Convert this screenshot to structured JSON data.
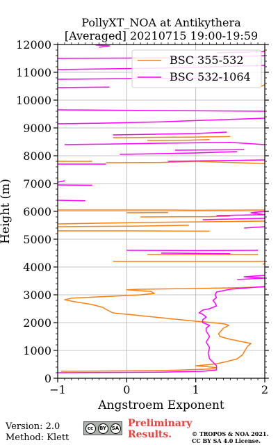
{
  "chart_data": {
    "type": "line",
    "title": "PollyXT_NOA at Antikythera",
    "subtitle": "[Averaged] 20210715 19:00-19:59",
    "xlabel": "Angstroem Exponent",
    "ylabel": "Height (m)",
    "xlim": [
      -1,
      2
    ],
    "ylim": [
      0,
      12000
    ],
    "x_ticks": [
      "−1",
      "0",
      "1",
      "2"
    ],
    "x_tick_values": [
      -1,
      0,
      1,
      2
    ],
    "y_ticks": [
      "0",
      "1000",
      "2000",
      "3000",
      "4000",
      "5000",
      "6000",
      "7000",
      "8000",
      "9000",
      "10000",
      "11000",
      "12000"
    ],
    "y_tick_values": [
      0,
      1000,
      2000,
      3000,
      4000,
      5000,
      6000,
      7000,
      8000,
      9000,
      10000,
      11000,
      12000
    ],
    "grid": true,
    "legend_position": "top-right",
    "series": [
      {
        "name": "BSC 355-532",
        "color": "#ff7f0e",
        "points": [
          [
            -0.95,
            250
          ],
          [
            0.6,
            280
          ],
          [
            1.2,
            330
          ],
          [
            1.3,
            380
          ],
          [
            1.1,
            430
          ],
          [
            1.0,
            450
          ],
          [
            1.15,
            480
          ],
          [
            1.3,
            520
          ],
          [
            1.45,
            600
          ],
          [
            1.6,
            700
          ],
          [
            1.68,
            850
          ],
          [
            1.7,
            950
          ],
          [
            1.75,
            1150
          ],
          [
            1.8,
            1250
          ],
          [
            1.7,
            1300
          ],
          [
            1.5,
            1400
          ],
          [
            1.35,
            1500
          ],
          [
            1.33,
            1600
          ],
          [
            1.4,
            1800
          ],
          [
            1.48,
            1900
          ],
          [
            1.42,
            1950
          ],
          [
            1.25,
            2000
          ],
          [
            1.0,
            2050
          ],
          [
            0.6,
            2150
          ],
          [
            0.2,
            2250
          ],
          [
            -0.2,
            2350
          ],
          [
            -0.28,
            2450
          ],
          [
            -0.35,
            2550
          ],
          [
            -0.5,
            2650
          ],
          [
            -0.75,
            2750
          ],
          [
            -0.9,
            2820
          ],
          [
            -0.8,
            2880
          ],
          [
            -0.2,
            2950
          ],
          [
            0.2,
            3000
          ],
          [
            0.4,
            3050
          ],
          [
            0.35,
            3120
          ],
          [
            0.0,
            3180
          ],
          [
            0.2,
            3200
          ],
          [
            0.8,
            3220
          ],
          [
            1.5,
            3250
          ],
          [
            2.0,
            3280
          ],
          null,
          [
            -0.2,
            4200
          ],
          [
            2.0,
            4200
          ],
          null,
          [
            1.97,
            4100
          ],
          [
            2.0,
            4120
          ],
          null,
          [
            0.3,
            4450
          ],
          [
            1.9,
            4450
          ],
          null,
          [
            -1.0,
            5300
          ],
          [
            0.0,
            5300
          ],
          [
            1.2,
            5290
          ],
          null,
          [
            -1.0,
            5450
          ],
          [
            0.1,
            5470
          ],
          [
            0.9,
            5500
          ],
          null,
          [
            -1.0,
            5550
          ],
          [
            0.2,
            5600
          ],
          [
            0.9,
            5620
          ],
          [
            2.0,
            5650
          ],
          null,
          [
            0.2,
            5800
          ],
          [
            1.2,
            5810
          ],
          [
            1.5,
            5830
          ],
          null,
          [
            -1.0,
            6050
          ],
          [
            0.6,
            6050
          ],
          [
            1.0,
            6040
          ],
          [
            2.0,
            6050
          ],
          null,
          [
            0.0,
            5950
          ],
          [
            0.6,
            5960
          ],
          null,
          [
            -0.3,
            7750
          ],
          [
            0.5,
            7760
          ],
          [
            1.0,
            7800
          ],
          [
            2.0,
            7720
          ],
          null,
          [
            -1.0,
            7800
          ],
          [
            -0.5,
            7800
          ],
          null,
          [
            -0.2,
            8650
          ],
          [
            0.3,
            8660
          ],
          [
            0.9,
            8670
          ],
          [
            1.5,
            8690
          ],
          null,
          [
            0.3,
            8550
          ],
          [
            0.9,
            8560
          ],
          [
            1.2,
            8580
          ],
          null,
          [
            1.95,
            10500
          ],
          [
            2.0,
            10550
          ],
          null,
          [
            1.97,
            11750
          ],
          [
            2.0,
            11780
          ]
        ]
      },
      {
        "name": "BSC 532-1064",
        "color": "#ff00ff",
        "points": [
          [
            -1.0,
            200
          ],
          [
            0.5,
            220
          ],
          [
            1.1,
            250
          ],
          [
            1.3,
            300
          ],
          [
            1.3,
            450
          ],
          [
            1.2,
            700
          ],
          [
            1.18,
            900
          ],
          [
            1.2,
            1100
          ],
          [
            1.15,
            1300
          ],
          [
            1.2,
            1500
          ],
          [
            1.15,
            1700
          ],
          [
            1.15,
            1800
          ],
          [
            1.2,
            1900
          ],
          [
            1.1,
            2000
          ],
          [
            1.1,
            2100
          ],
          [
            1.15,
            2200
          ],
          [
            1.1,
            2300
          ],
          [
            1.05,
            2350
          ],
          [
            1.1,
            2450
          ],
          [
            1.2,
            2500
          ],
          [
            1.3,
            2600
          ],
          [
            1.28,
            2700
          ],
          [
            1.25,
            2800
          ],
          [
            1.3,
            2900
          ],
          [
            1.28,
            3000
          ],
          [
            1.3,
            3100
          ],
          [
            1.5,
            3200
          ],
          [
            2.0,
            3300
          ],
          null,
          [
            1.6,
            3550
          ],
          [
            2.0,
            3600
          ],
          [
            1.7,
            3650
          ],
          [
            2.0,
            3700
          ],
          null,
          [
            0.0,
            4600
          ],
          [
            1.0,
            4590
          ],
          [
            1.9,
            4600
          ],
          null,
          [
            0.5,
            4500
          ],
          [
            1.5,
            4480
          ],
          null,
          [
            1.7,
            5400
          ],
          [
            2.0,
            5450
          ],
          null,
          [
            1.1,
            5700
          ],
          [
            1.4,
            5720
          ],
          [
            2.0,
            5750
          ],
          null,
          [
            1.3,
            5850
          ],
          [
            2.0,
            5880
          ],
          [
            1.8,
            5950
          ],
          [
            2.0,
            6000
          ],
          null,
          [
            -1.0,
            6400
          ],
          [
            -0.6,
            6380
          ],
          null,
          [
            -1.0,
            6950
          ],
          [
            -0.5,
            6940
          ],
          null,
          [
            -1.0,
            7050
          ],
          [
            -0.9,
            7100
          ],
          null,
          [
            -1.0,
            7700
          ],
          [
            -0.3,
            7700
          ],
          null,
          [
            0.6,
            7800
          ],
          [
            2.0,
            7850
          ],
          null,
          [
            -0.1,
            8050
          ],
          [
            1.0,
            8100
          ],
          [
            1.6,
            8150
          ],
          null,
          [
            0.7,
            8200
          ],
          [
            1.7,
            8220
          ],
          null,
          [
            -0.9,
            8400
          ],
          [
            -0.3,
            8420
          ],
          [
            0.5,
            8450
          ],
          [
            1.5,
            8480
          ],
          [
            2.0,
            8400
          ],
          null,
          [
            -0.2,
            8750
          ],
          [
            1.0,
            8800
          ],
          [
            1.45,
            8850
          ],
          null,
          [
            -1.0,
            9150
          ],
          [
            -0.4,
            9170
          ],
          [
            0.5,
            9220
          ],
          [
            2.0,
            9350
          ],
          null,
          [
            -1.0,
            9650
          ],
          [
            2.0,
            9600
          ],
          null,
          [
            -1.0,
            10450
          ],
          [
            -0.25,
            10470
          ],
          null,
          [
            -1.0,
            10750
          ],
          [
            0.3,
            10780
          ],
          [
            1.5,
            10800
          ],
          null,
          [
            -1.0,
            11100
          ],
          [
            0.5,
            11150
          ],
          [
            2.0,
            11250
          ],
          null,
          [
            -1.0,
            11500
          ],
          [
            0.8,
            11520
          ],
          [
            2.0,
            11600
          ],
          null,
          [
            -0.4,
            11900
          ],
          [
            -0.25,
            11950
          ],
          [
            -0.45,
            11980
          ],
          null,
          [
            1.3,
            11700
          ],
          [
            2.0,
            11750
          ]
        ]
      }
    ]
  },
  "footer": {
    "version": "Version: 2.0",
    "method": "Method: Klett",
    "cc_badge": [
      "cc",
      "BY",
      "SA"
    ],
    "preliminary_line1": "Preliminary",
    "preliminary_line2": "Results.",
    "copyright_line1": "© TROPOS & NOA 2021.",
    "copyright_line2": "CC BY SA 4.0 License."
  }
}
